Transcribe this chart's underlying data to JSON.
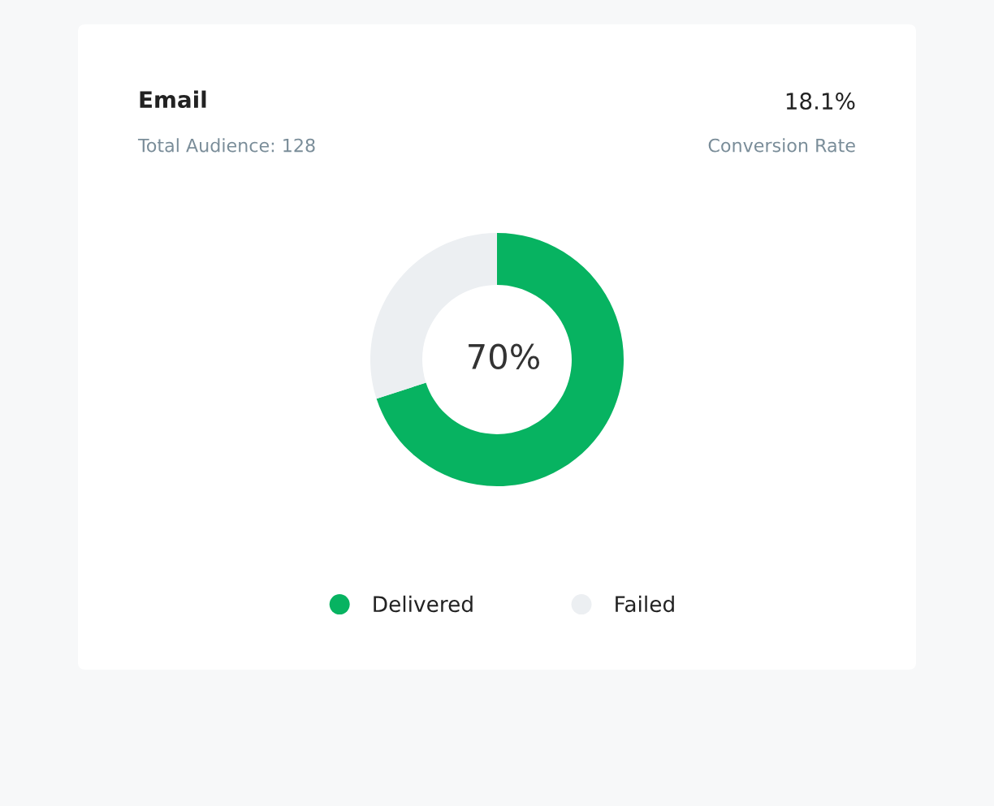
{
  "chart_data": {
    "type": "donut",
    "title": "Email",
    "subtitle": "Total Audience: 128",
    "categories": [
      "Delivered",
      "Failed"
    ],
    "values": [
      70,
      30
    ],
    "colors": [
      "#07b361",
      "#eceff2"
    ],
    "annotations": [
      "18.1%",
      "Conversion Rate",
      "70%"
    ],
    "legend": "bottom"
  }
}
